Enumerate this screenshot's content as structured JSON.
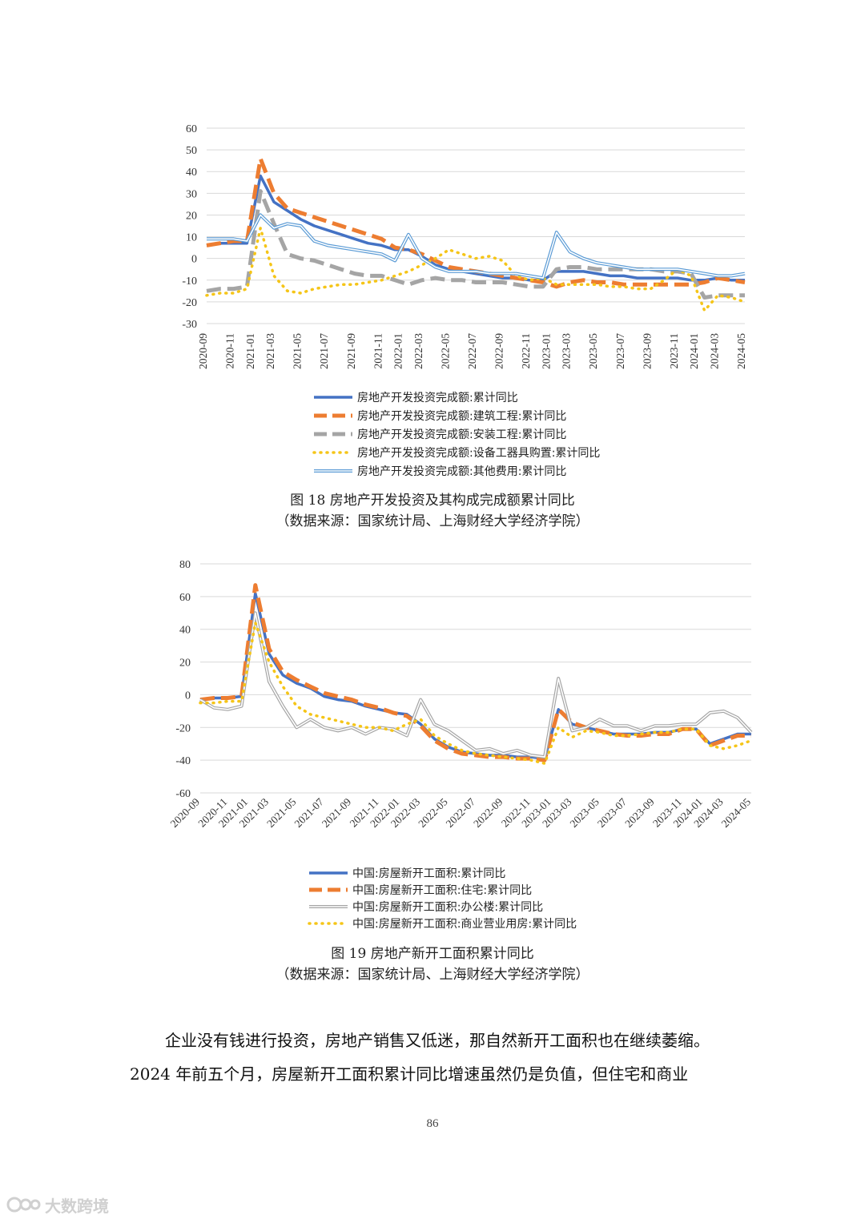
{
  "chart_data": [
    {
      "type": "line",
      "title": "",
      "xlabel": "",
      "ylabel": "",
      "ylim": [
        -30,
        60
      ],
      "yticks": [
        60,
        50,
        40,
        30,
        20,
        10,
        0,
        -10,
        -20,
        -30
      ],
      "grid": true,
      "legend_position": "bottom",
      "x": [
        "2020-09",
        "2020-10",
        "2020-11",
        "2020-12",
        "2021-02",
        "2021-03",
        "2021-04",
        "2021-05",
        "2021-06",
        "2021-07",
        "2021-08",
        "2021-09",
        "2021-10",
        "2021-11",
        "2021-12",
        "2022-02",
        "2022-03",
        "2022-04",
        "2022-05",
        "2022-06",
        "2022-07",
        "2022-08",
        "2022-09",
        "2022-10",
        "2022-11",
        "2022-12",
        "2023-02",
        "2023-03",
        "2023-04",
        "2023-05",
        "2023-06",
        "2023-07",
        "2023-08",
        "2023-09",
        "2023-10",
        "2023-11",
        "2023-12",
        "2024-02",
        "2024-03",
        "2024-04",
        "2024-05"
      ],
      "xticks": [
        "2020-09",
        "2020-11",
        "2021-01",
        "2021-03",
        "2021-05",
        "2021-07",
        "2021-09",
        "2021-11",
        "2022-01",
        "2022-03",
        "2022-05",
        "2022-07",
        "2022-09",
        "2022-11",
        "2023-01",
        "2023-03",
        "2023-05",
        "2023-07",
        "2023-09",
        "2023-11",
        "2024-01",
        "2024-03",
        "2024-05"
      ],
      "series": [
        {
          "name": "房地产开发投资完成额:累计同比",
          "color": "#4472C4",
          "style": "solid",
          "values": [
            6,
            7,
            7,
            7,
            38,
            26,
            22,
            18,
            15,
            13,
            11,
            9,
            7,
            6,
            4,
            4,
            1,
            -3,
            -5,
            -6,
            -7,
            -8,
            -9,
            -9,
            -10,
            -10,
            -6,
            -6,
            -6,
            -7,
            -8,
            -8,
            -9,
            -9,
            -9,
            -9,
            -10,
            -10,
            -9,
            -10,
            -10
          ]
        },
        {
          "name": "房地产开发投资完成额:建筑工程:累计同比",
          "color": "#ED7D31",
          "style": "dash",
          "values": [
            6,
            7,
            8,
            8,
            46,
            30,
            23,
            21,
            19,
            17,
            15,
            13,
            11,
            9,
            5,
            4,
            2,
            -1,
            -4,
            -5,
            -6,
            -7,
            -8,
            -9,
            -10,
            -11,
            -13,
            -11,
            -10,
            -11,
            -11,
            -12,
            -12,
            -12,
            -12,
            -12,
            -12,
            -11,
            -9,
            -10,
            -11
          ]
        },
        {
          "name": "房地产开发投资完成额:安装工程:累计同比",
          "color": "#A5A5A5",
          "style": "dash",
          "values": [
            -15,
            -14,
            -14,
            -13,
            31,
            16,
            2,
            0,
            -1,
            -3,
            -5,
            -7,
            -8,
            -8,
            -10,
            -12,
            -10,
            -9,
            -10,
            -10,
            -11,
            -11,
            -11,
            -12,
            -13,
            -13,
            -5,
            -4,
            -4,
            -5,
            -5,
            -5,
            -5,
            -5,
            -6,
            -6,
            -7,
            -18,
            -17,
            -17,
            -17
          ]
        },
        {
          "name": "房地产开发投资完成额:设备工器具购置:累计同比",
          "color": "#F5C518",
          "style": "dot",
          "values": [
            -17,
            -16,
            -16,
            -14,
            14,
            -8,
            -15,
            -16,
            -14,
            -13,
            -12,
            -12,
            -11,
            -10,
            -8,
            -6,
            -3,
            0,
            4,
            2,
            0,
            1,
            -1,
            -8,
            -10,
            -9,
            -12,
            -12,
            -12,
            -12,
            -13,
            -13,
            -14,
            -14,
            -10,
            -5,
            -8,
            -24,
            -17,
            -18,
            -20
          ]
        },
        {
          "name": "房地产开发投资完成额:其他费用:累计同比",
          "color": "#5B9BD5",
          "style": "double",
          "values": [
            9,
            9,
            9,
            8,
            20,
            14,
            16,
            15,
            8,
            6,
            5,
            4,
            3,
            2,
            -1,
            11,
            0,
            -4,
            -6,
            -6,
            -6,
            -7,
            -7,
            -7,
            -8,
            -9,
            12,
            3,
            0,
            -2,
            -3,
            -4,
            -5,
            -5,
            -5,
            -5,
            -6,
            -7,
            -8,
            -8,
            -7
          ]
        }
      ]
    },
    {
      "type": "line",
      "title": "",
      "xlabel": "",
      "ylabel": "",
      "ylim": [
        -60,
        80
      ],
      "yticks": [
        80,
        60,
        40,
        20,
        0,
        -20,
        -40,
        -60
      ],
      "grid": true,
      "legend_position": "bottom",
      "x": [
        "2020-09",
        "2020-10",
        "2020-11",
        "2020-12",
        "2021-02",
        "2021-03",
        "2021-04",
        "2021-05",
        "2021-06",
        "2021-07",
        "2021-08",
        "2021-09",
        "2021-10",
        "2021-11",
        "2021-12",
        "2022-02",
        "2022-03",
        "2022-04",
        "2022-05",
        "2022-06",
        "2022-07",
        "2022-08",
        "2022-09",
        "2022-10",
        "2022-11",
        "2022-12",
        "2023-02",
        "2023-03",
        "2023-04",
        "2023-05",
        "2023-06",
        "2023-07",
        "2023-08",
        "2023-09",
        "2023-10",
        "2023-11",
        "2023-12",
        "2024-02",
        "2024-03",
        "2024-04",
        "2024-05"
      ],
      "xticks": [
        "2020-09",
        "2020-11",
        "2021-01",
        "2021-03",
        "2021-05",
        "2021-07",
        "2021-09",
        "2021-11",
        "2022-01",
        "2022-03",
        "2022-05",
        "2022-07",
        "2022-09",
        "2022-11",
        "2023-01",
        "2023-03",
        "2023-05",
        "2023-07",
        "2023-09",
        "2023-11",
        "2024-01",
        "2024-03",
        "2024-05"
      ],
      "series": [
        {
          "name": "中国:房屋新开工面积:累计同比",
          "color": "#4472C4",
          "style": "solid",
          "values": [
            -3,
            -2,
            -2,
            -1,
            62,
            25,
            12,
            7,
            4,
            -1,
            -3,
            -4,
            -7,
            -9,
            -11,
            -12,
            -18,
            -27,
            -32,
            -35,
            -36,
            -37,
            -37,
            -38,
            -38,
            -39,
            -9,
            -18,
            -20,
            -22,
            -24,
            -24,
            -24,
            -23,
            -23,
            -21,
            -21,
            -30,
            -27,
            -24,
            -24
          ]
        },
        {
          "name": "中国:房屋新开工面积:住宅:累计同比",
          "color": "#ED7D31",
          "style": "dash",
          "values": [
            -3,
            -2,
            -2,
            -1,
            67,
            28,
            14,
            9,
            5,
            1,
            -1,
            -3,
            -6,
            -8,
            -11,
            -13,
            -19,
            -28,
            -33,
            -36,
            -37,
            -38,
            -38,
            -39,
            -39,
            -40,
            -9,
            -17,
            -20,
            -22,
            -24,
            -25,
            -25,
            -24,
            -24,
            -21,
            -21,
            -31,
            -28,
            -25,
            -25
          ]
        },
        {
          "name": "中国:房屋新开工面积:办公楼:累计同比",
          "color": "#A5A5A5",
          "style": "double",
          "values": [
            -3,
            -8,
            -9,
            -7,
            50,
            8,
            -7,
            -20,
            -15,
            -20,
            -22,
            -20,
            -24,
            -20,
            -21,
            -25,
            -3,
            -18,
            -22,
            -28,
            -34,
            -33,
            -36,
            -34,
            -37,
            -38,
            10,
            -22,
            -20,
            -15,
            -19,
            -19,
            -22,
            -19,
            -19,
            -18,
            -18,
            -11,
            -10,
            -14,
            -23
          ]
        },
        {
          "name": "中国:房屋新开工面积:商业营业用房:累计同比",
          "color": "#F5C518",
          "style": "dot",
          "values": [
            -5,
            -5,
            -4,
            -4,
            44,
            20,
            5,
            -7,
            -12,
            -14,
            -16,
            -18,
            -20,
            -20,
            -22,
            -18,
            -15,
            -25,
            -30,
            -34,
            -36,
            -37,
            -38,
            -39,
            -40,
            -42,
            -20,
            -26,
            -22,
            -23,
            -25,
            -25,
            -24,
            -23,
            -23,
            -21,
            -21,
            -31,
            -33,
            -31,
            -28
          ]
        }
      ]
    }
  ],
  "captions": {
    "fig18_title": "图 18 房地产开发投资及其构成完成额累计同比",
    "fig18_source": "（数据来源：国家统计局、上海财经大学经济学院）",
    "fig19_title": "图 19 房地产新开工面积累计同比",
    "fig19_source": "（数据来源：国家统计局、上海财经大学经济学院）"
  },
  "body_text": {
    "line1": "企业没有钱进行投资，房地产销售又低迷，那自然新开工面积也在继续萎缩。",
    "line2": "2024 年前五个月，房屋新开工面积累计同比增速虽然仍是负值，但住宅和商业"
  },
  "page_number": "86",
  "watermark": {
    "text": "大数跨境",
    "icon": "logo-icon"
  }
}
